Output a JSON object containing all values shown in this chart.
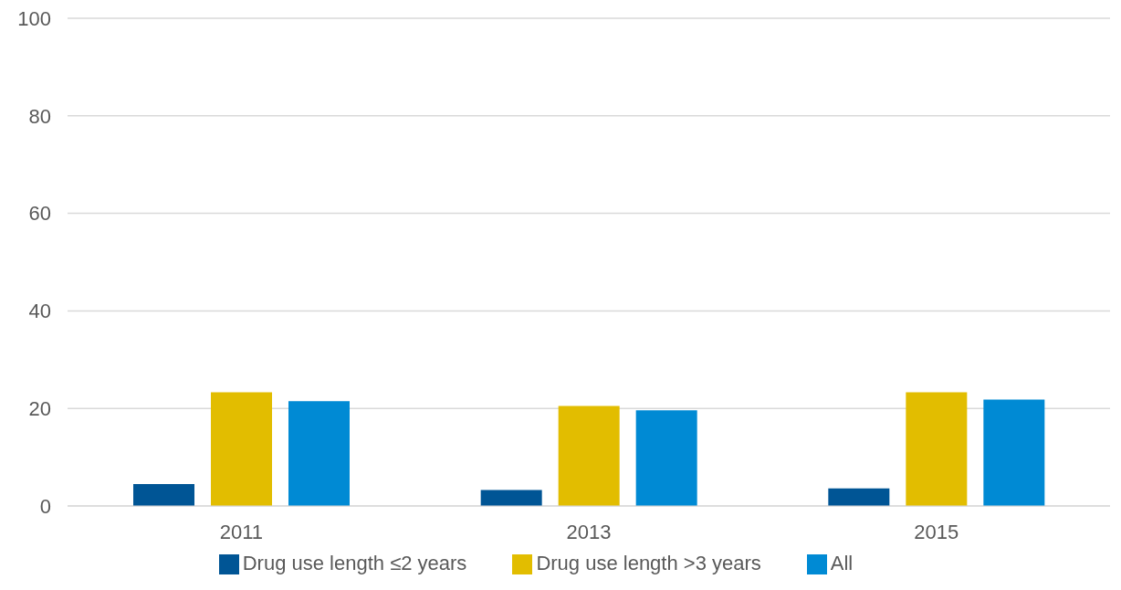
{
  "chart_data": {
    "type": "bar",
    "categories": [
      "2011",
      "2013",
      "2015"
    ],
    "series": [
      {
        "name": "Drug use length ≤2 years",
        "color": "#005595",
        "values": [
          4.5,
          3.3,
          3.6
        ]
      },
      {
        "name": "Drug use length >3 years",
        "color": "#e2bd00",
        "values": [
          23.3,
          20.5,
          23.3
        ]
      },
      {
        "name": "All",
        "color": "#008ad4",
        "values": [
          21.5,
          19.6,
          21.8
        ]
      }
    ],
    "ylim": [
      0,
      100
    ],
    "yticks": [
      0,
      20,
      40,
      60,
      80,
      100
    ],
    "grid": "y",
    "legend": "bottom"
  }
}
